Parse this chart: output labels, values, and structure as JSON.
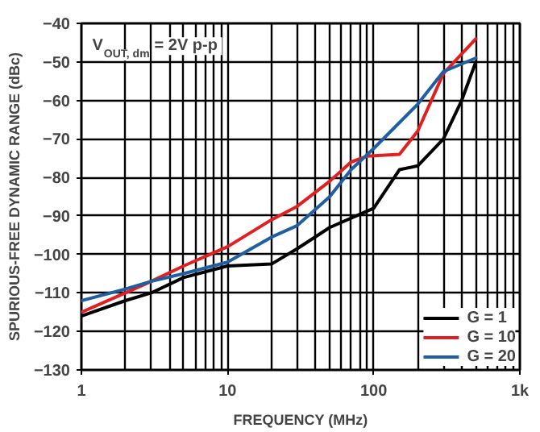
{
  "chart_data": {
    "type": "line",
    "xlabel": "FREQUENCY (MHz)",
    "ylabel": "SPURIOUS-FREE DYNAMIC RANGE (dBc)",
    "annotations": [
      "V$_{OUT, dm}$ = 2V p-p"
    ],
    "log": "x",
    "grid": true,
    "legend": "bottom right",
    "xlim": [
      1,
      1000
    ],
    "xticks": [
      1,
      10,
      100,
      {
        "value": 1000,
        "label": "1k"
      }
    ],
    "ylim": [
      -130,
      -40
    ],
    "yticks": [
      -130,
      -120,
      -110,
      -100,
      -90,
      -80,
      -70,
      -60,
      -50,
      -40
    ],
    "series": [
      {
        "name": "G = 1",
        "color": "#000000",
        "x": [
          1,
          2,
          3,
          5,
          10,
          20,
          30,
          50,
          100,
          150,
          200,
          300,
          400,
          500
        ],
        "values": [
          -116,
          -112,
          -110,
          -106,
          -103,
          -102.5,
          -98.5,
          -93,
          -88,
          -78,
          -77,
          -70,
          -60,
          -50
        ]
      },
      {
        "name": "G = 10",
        "color": "#e02020",
        "x": [
          1,
          2,
          3,
          5,
          10,
          20,
          30,
          50,
          70,
          90,
          150,
          200,
          300,
          500
        ],
        "values": [
          -115,
          -110,
          -107,
          -103,
          -98,
          -91,
          -87.5,
          -81,
          -76,
          -74.5,
          -74,
          -68,
          -53,
          -44
        ]
      },
      {
        "name": "G = 20",
        "color": "#1f5fa0",
        "x": [
          1,
          2,
          3,
          5,
          10,
          20,
          30,
          50,
          70,
          100,
          200,
          300,
          500
        ],
        "values": [
          -112,
          -109,
          -107,
          -105,
          -102,
          -95.5,
          -92.5,
          -85,
          -78,
          -72.5,
          -61,
          -52.5,
          -49
        ]
      }
    ]
  }
}
